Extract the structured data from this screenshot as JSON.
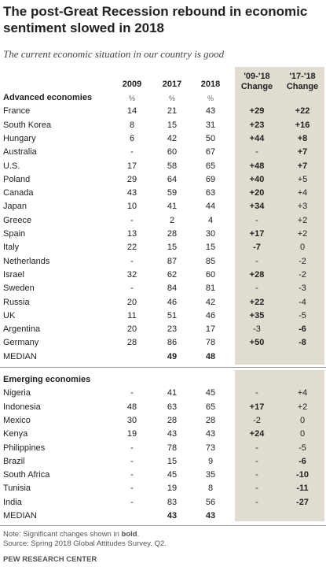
{
  "header": {
    "title": "The post-Great Recession rebound in economic sentiment slowed in 2018",
    "subtitle": "The current economic situation in our country is good"
  },
  "table": {
    "columns": [
      "2009",
      "2017",
      "2018"
    ],
    "change_columns": [
      [
        "'09-'18",
        "Change"
      ],
      [
        "'17-'18",
        "Change"
      ]
    ],
    "unit": "%",
    "sections": [
      {
        "title": "Advanced economies",
        "rows": [
          {
            "name": "France",
            "cells": [
              "14",
              "21",
              "43",
              "+29",
              "+22"
            ],
            "bold": [
              true,
              true
            ]
          },
          {
            "name": "South Korea",
            "cells": [
              "8",
              "15",
              "31",
              "+23",
              "+16"
            ],
            "bold": [
              true,
              true
            ]
          },
          {
            "name": "Hungary",
            "cells": [
              "6",
              "42",
              "50",
              "+44",
              "+8"
            ],
            "bold": [
              true,
              true
            ]
          },
          {
            "name": "Australia",
            "cells": [
              "-",
              "60",
              "67",
              "-",
              "+7"
            ],
            "bold": [
              false,
              true
            ]
          },
          {
            "name": "U.S.",
            "cells": [
              "17",
              "58",
              "65",
              "+48",
              "+7"
            ],
            "bold": [
              true,
              true
            ]
          },
          {
            "name": "Poland",
            "cells": [
              "29",
              "64",
              "69",
              "+40",
              "+5"
            ],
            "bold": [
              true,
              false
            ]
          },
          {
            "name": "Canada",
            "cells": [
              "43",
              "59",
              "63",
              "+20",
              "+4"
            ],
            "bold": [
              true,
              false
            ]
          },
          {
            "name": "Japan",
            "cells": [
              "10",
              "41",
              "44",
              "+34",
              "+3"
            ],
            "bold": [
              true,
              false
            ]
          },
          {
            "name": "Greece",
            "cells": [
              "-",
              "2",
              "4",
              "-",
              "+2"
            ],
            "bold": [
              false,
              false
            ]
          },
          {
            "name": "Spain",
            "cells": [
              "13",
              "28",
              "30",
              "+17",
              "+2"
            ],
            "bold": [
              true,
              false
            ]
          },
          {
            "name": "Italy",
            "cells": [
              "22",
              "15",
              "15",
              "-7",
              "0"
            ],
            "bold": [
              true,
              false
            ]
          },
          {
            "name": "Netherlands",
            "cells": [
              "-",
              "87",
              "85",
              "-",
              "-2"
            ],
            "bold": [
              false,
              false
            ]
          },
          {
            "name": "Israel",
            "cells": [
              "32",
              "62",
              "60",
              "+28",
              "-2"
            ],
            "bold": [
              true,
              false
            ]
          },
          {
            "name": "Sweden",
            "cells": [
              "-",
              "84",
              "81",
              "-",
              "-3"
            ],
            "bold": [
              false,
              false
            ]
          },
          {
            "name": "Russia",
            "cells": [
              "20",
              "46",
              "42",
              "+22",
              "-4"
            ],
            "bold": [
              true,
              false
            ]
          },
          {
            "name": "UK",
            "cells": [
              "11",
              "51",
              "46",
              "+35",
              "-5"
            ],
            "bold": [
              true,
              false
            ]
          },
          {
            "name": "Argentina",
            "cells": [
              "20",
              "23",
              "17",
              "-3",
              "-6"
            ],
            "bold": [
              false,
              true
            ]
          },
          {
            "name": "Germany",
            "cells": [
              "28",
              "86",
              "78",
              "+50",
              "-8"
            ],
            "bold": [
              true,
              true
            ]
          },
          {
            "name": "MEDIAN",
            "cells": [
              null,
              "49",
              "48",
              null,
              null
            ],
            "bold": [
              false,
              false
            ]
          }
        ]
      },
      {
        "title": "Emerging economies",
        "rows": [
          {
            "name": "Nigeria",
            "cells": [
              "-",
              "41",
              "45",
              "-",
              "+4"
            ],
            "bold": [
              false,
              false
            ]
          },
          {
            "name": "Indonesia",
            "cells": [
              "48",
              "63",
              "65",
              "+17",
              "+2"
            ],
            "bold": [
              true,
              false
            ]
          },
          {
            "name": "Mexico",
            "cells": [
              "30",
              "28",
              "28",
              "-2",
              "0"
            ],
            "bold": [
              false,
              false
            ]
          },
          {
            "name": "Kenya",
            "cells": [
              "19",
              "43",
              "43",
              "+24",
              "0"
            ],
            "bold": [
              true,
              false
            ]
          },
          {
            "name": "Philippines",
            "cells": [
              "-",
              "78",
              "73",
              "-",
              "-5"
            ],
            "bold": [
              false,
              false
            ]
          },
          {
            "name": "Brazil",
            "cells": [
              "-",
              "15",
              "9",
              "-",
              "-6"
            ],
            "bold": [
              false,
              true
            ]
          },
          {
            "name": "South Africa",
            "cells": [
              "-",
              "45",
              "35",
              "-",
              "-10"
            ],
            "bold": [
              false,
              true
            ]
          },
          {
            "name": "Tunisia",
            "cells": [
              "-",
              "19",
              "8",
              "-",
              "-11"
            ],
            "bold": [
              false,
              true
            ]
          },
          {
            "name": "India",
            "cells": [
              "-",
              "83",
              "56",
              "-",
              "-27"
            ],
            "bold": [
              false,
              true
            ]
          },
          {
            "name": "MEDIAN",
            "cells": [
              null,
              "43",
              "43",
              null,
              null
            ],
            "bold": [
              false,
              false
            ]
          }
        ]
      }
    ]
  },
  "footer": {
    "note": [
      "Note: Significant changes shown in ",
      "bold",
      "."
    ],
    "source": "Source: Spring 2018 Global Attitudes Survey. Q2.",
    "credit": "PEW RESEARCH CENTER"
  }
}
